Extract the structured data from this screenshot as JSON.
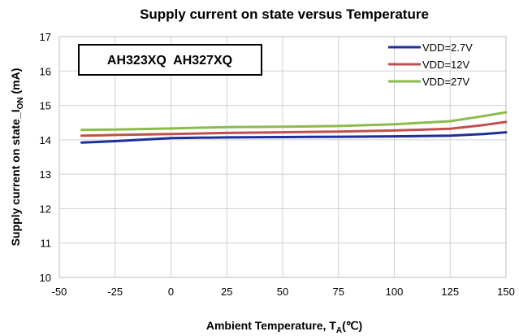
{
  "chart_data": {
    "type": "line",
    "title": "Supply current on state versus Temperature",
    "xlabel": {
      "main": "Ambient Temperature, T",
      "sub": "A",
      "unit": "(℃)"
    },
    "ylabel": {
      "main": "Supply  current on state_I",
      "sub": "ON",
      "unit": " (mA)"
    },
    "xlim": [
      -50,
      150
    ],
    "ylim": [
      10,
      17
    ],
    "xticks": [
      -50,
      -25,
      0,
      25,
      50,
      75,
      100,
      125,
      150
    ],
    "yticks": [
      10,
      11,
      12,
      13,
      14,
      15,
      16,
      17
    ],
    "grid": "both",
    "legend_position": "top-right",
    "annotation": "AH323XQ  AH327XQ",
    "series": [
      {
        "name": "VDD=2.7V",
        "color": "#1f2f9a",
        "x": [
          -40,
          -25,
          0,
          25,
          50,
          75,
          100,
          125,
          140,
          150
        ],
        "y": [
          13.92,
          13.96,
          14.05,
          14.07,
          14.08,
          14.09,
          14.1,
          14.12,
          14.17,
          14.22
        ]
      },
      {
        "name": "VDD=12V",
        "color": "#c0504d",
        "x": [
          -40,
          -25,
          0,
          25,
          50,
          75,
          100,
          125,
          140,
          150
        ],
        "y": [
          14.12,
          14.14,
          14.17,
          14.2,
          14.22,
          14.24,
          14.27,
          14.32,
          14.43,
          14.52
        ]
      },
      {
        "name": "VDD=27V",
        "color": "#8dbb4b",
        "x": [
          -40,
          -25,
          0,
          25,
          50,
          75,
          100,
          125,
          140,
          150
        ],
        "y": [
          14.29,
          14.3,
          14.33,
          14.37,
          14.38,
          14.4,
          14.45,
          14.54,
          14.69,
          14.8
        ]
      }
    ]
  }
}
